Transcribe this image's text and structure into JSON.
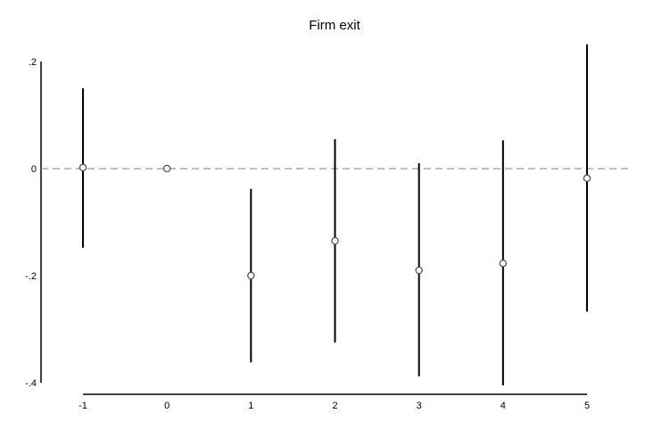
{
  "chart_data": {
    "type": "scatter",
    "title": "Firm exit",
    "xlabel": "",
    "ylabel": "",
    "x": [
      -1,
      0,
      1,
      2,
      3,
      4,
      5
    ],
    "estimates": [
      0.002,
      0.0,
      -0.2,
      -0.135,
      -0.19,
      -0.177,
      -0.018
    ],
    "ci_lower": [
      -0.148,
      0.0,
      -0.362,
      -0.325,
      -0.388,
      -0.405,
      -0.267
    ],
    "ci_upper": [
      0.15,
      0.0,
      -0.038,
      0.055,
      0.01,
      0.053,
      0.232
    ],
    "xticks": [
      "-1",
      "0",
      "1",
      "2",
      "3",
      "4",
      "5"
    ],
    "yticks": [
      {
        "value": 0.2,
        "label": ".2"
      },
      {
        "value": 0.0,
        "label": "0"
      },
      {
        "value": -0.2,
        "label": "-.2"
      },
      {
        "value": -0.4,
        "label": "-.4"
      }
    ],
    "ylim": [
      -0.4,
      0.2
    ],
    "xlim": [
      -1,
      5
    ],
    "reference_line": {
      "y": 0,
      "style": "dashed",
      "color": "#999999"
    },
    "marker": "hollow-circle",
    "colors": {
      "ci": "#000000",
      "marker": "#555555",
      "axis": "#000000"
    },
    "grid": false
  }
}
